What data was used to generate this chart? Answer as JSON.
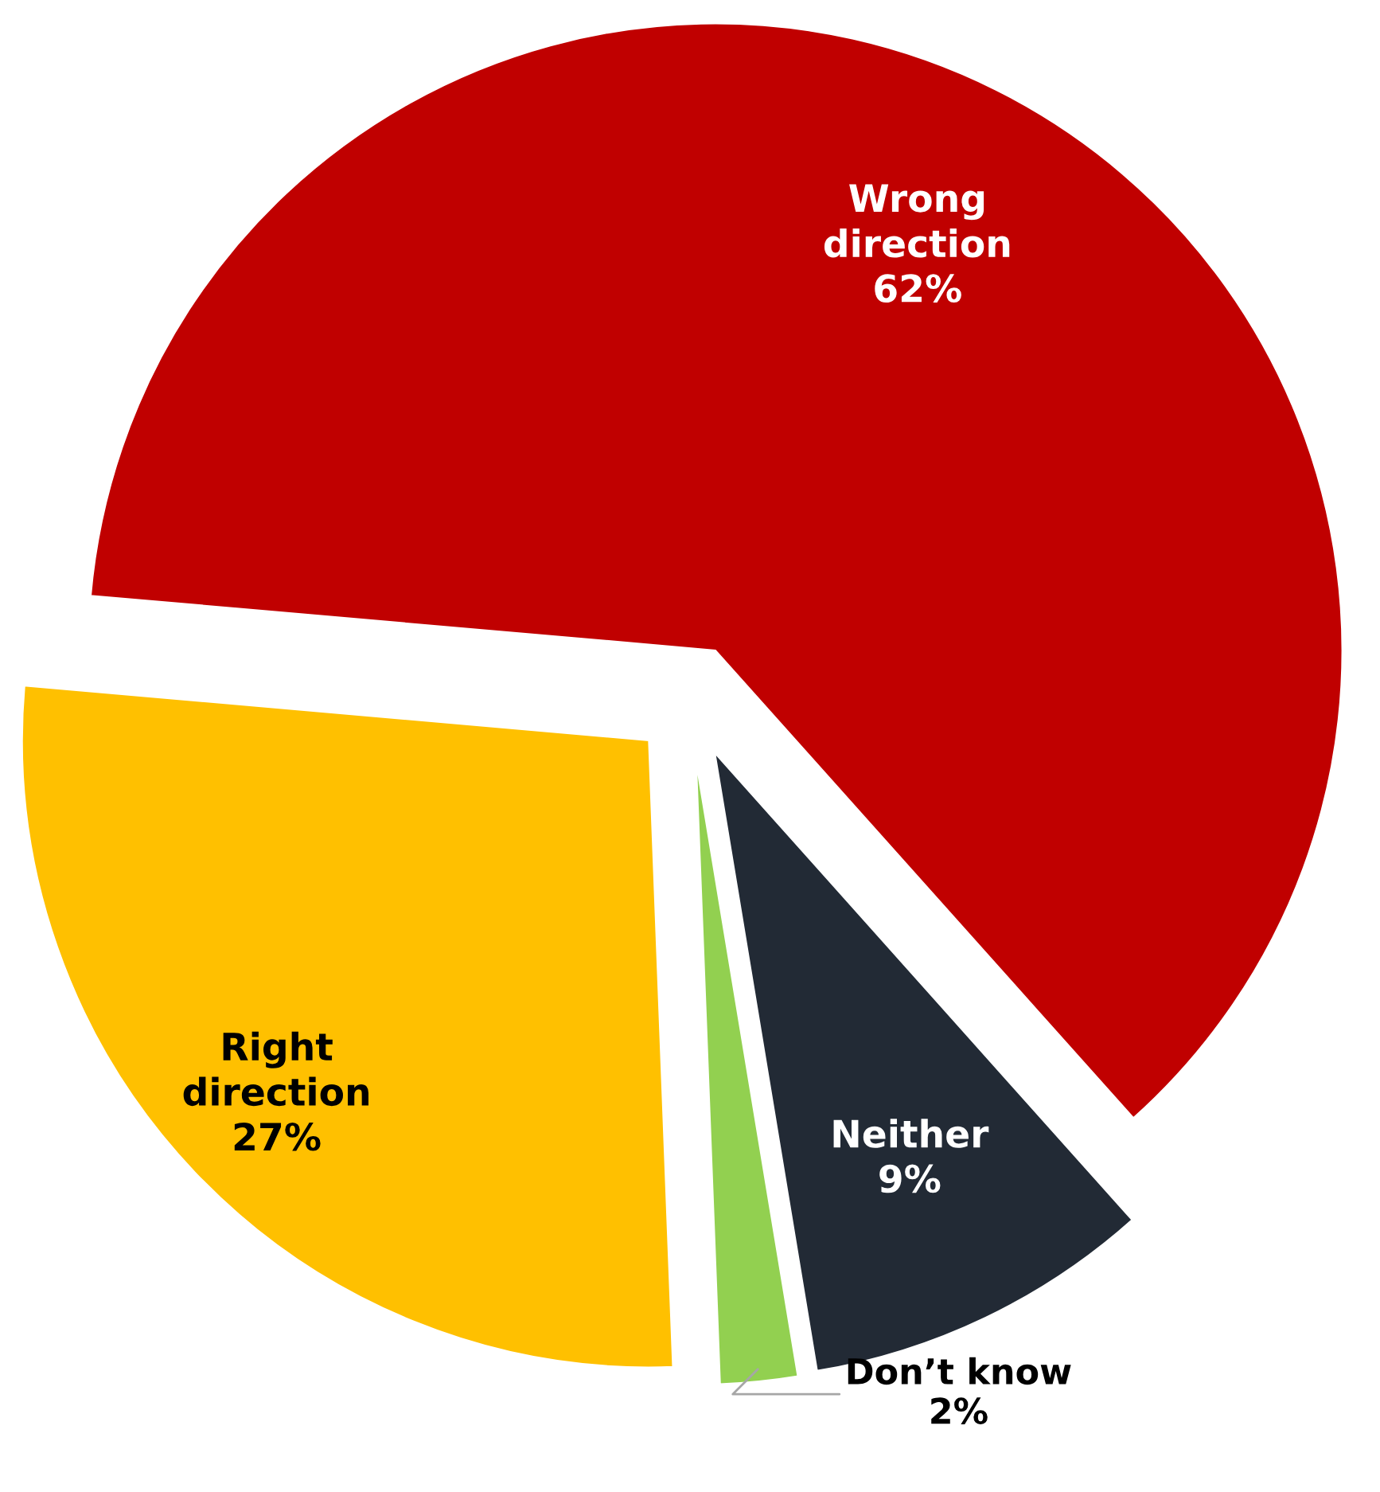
{
  "chart_data": {
    "type": "pie",
    "categories": [
      "Wrong\ndirection",
      "Neither",
      "Don’t know",
      "Right\ndirection"
    ],
    "values": [
      62,
      9,
      2,
      27
    ],
    "value_labels": [
      "62%",
      "9%",
      "2%",
      "27%"
    ],
    "colors": [
      "#c00000",
      "#222a35",
      "#92d050",
      "#ffc000"
    ]
  }
}
